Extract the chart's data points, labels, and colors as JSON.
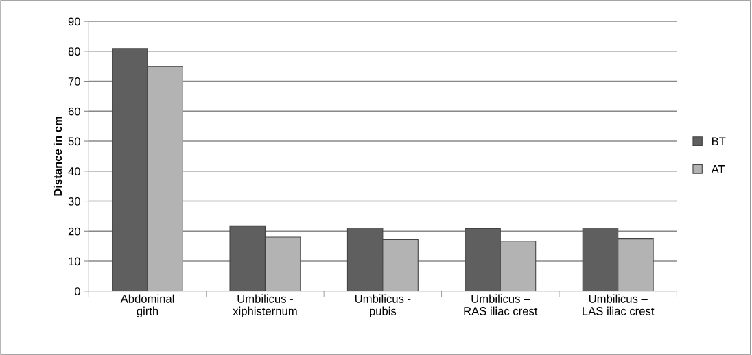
{
  "chart_data": {
    "type": "bar",
    "ylabel": "Distance in cm",
    "categories": [
      "Abdominal\ngirth",
      "Umbilicus -\nxiphisternum",
      "Umbilicus -\npubis",
      "Umbilicus –\nRAS iliac crest",
      "Umbilicus –\nLAS iliac crest"
    ],
    "series": [
      {
        "name": "BT",
        "color": "#5f5f5f",
        "values": [
          80.9,
          21.6,
          21.1,
          20.9,
          21.1
        ]
      },
      {
        "name": "AT",
        "color": "#b3b3b3",
        "values": [
          74.9,
          18.0,
          17.2,
          16.7,
          17.4
        ]
      }
    ],
    "ylim": [
      0,
      90
    ],
    "yticks": [
      0,
      10,
      20,
      30,
      40,
      50,
      60,
      70,
      80,
      90
    ],
    "grid": "y",
    "legend": "right"
  }
}
